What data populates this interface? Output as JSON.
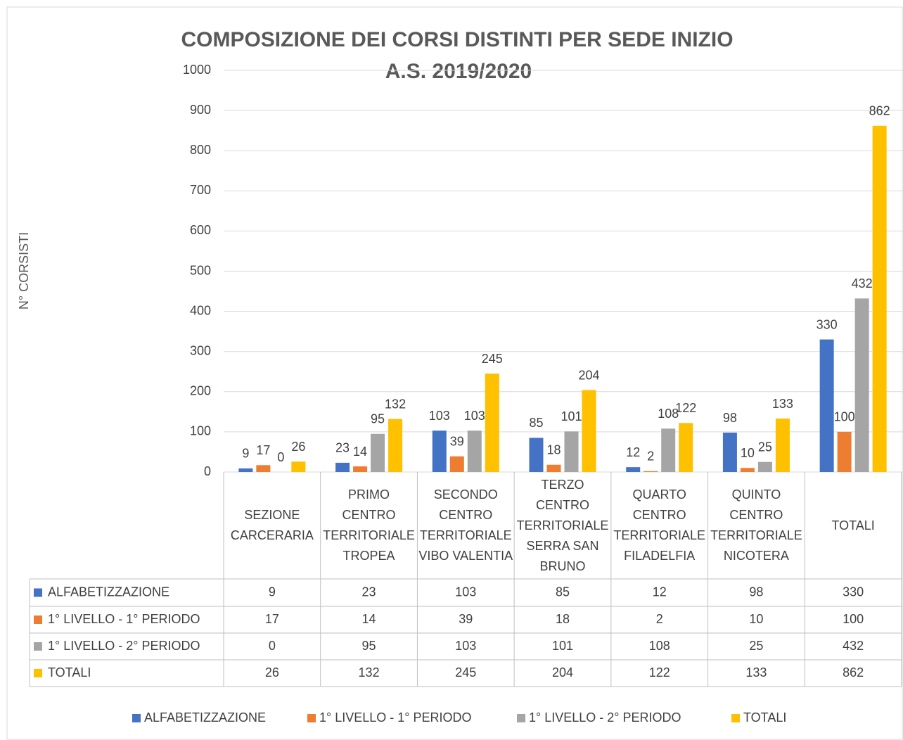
{
  "chart_data": {
    "type": "bar",
    "title": "COMPOSIZIONE DEI CORSI DISTINTI PER SEDE INIZIO",
    "subtitle": "A.S. 2019/2020",
    "y_label": "N° CORSISTI",
    "categories": [
      "SEZIONE CARCERARIA",
      "PRIMO CENTRO TERRITORIALE TROPEA",
      "SECONDO CENTRO TERRITORIALE VIBO VALENTIA",
      "TERZO CENTRO TERRITORIALE SERRA SAN BRUNO",
      "QUARTO CENTRO TERRITORIALE FILADELFIA",
      "QUINTO CENTRO TERRITORIALE NICOTERA",
      "TOTALI"
    ],
    "series": [
      {
        "name": "ALFABETIZZAZIONE",
        "color": "#4472c4",
        "values": [
          9,
          23,
          103,
          85,
          12,
          98,
          330
        ]
      },
      {
        "name": "1° LIVELLO - 1° PERIODO",
        "color": "#ed7d31",
        "values": [
          17,
          14,
          39,
          18,
          2,
          10,
          100
        ]
      },
      {
        "name": "1° LIVELLO - 2° PERIODO",
        "color": "#a5a5a5",
        "values": [
          0,
          95,
          103,
          101,
          108,
          25,
          432
        ]
      },
      {
        "name": "TOTALI",
        "color": "#ffc000",
        "values": [
          26,
          132,
          245,
          204,
          122,
          133,
          862
        ]
      }
    ],
    "ylim": [
      0,
      1000
    ],
    "yticks": [
      0,
      100,
      200,
      300,
      400,
      500,
      600,
      700,
      800,
      900,
      1000
    ],
    "grid": true,
    "legend": "bottom",
    "data_table": true
  }
}
